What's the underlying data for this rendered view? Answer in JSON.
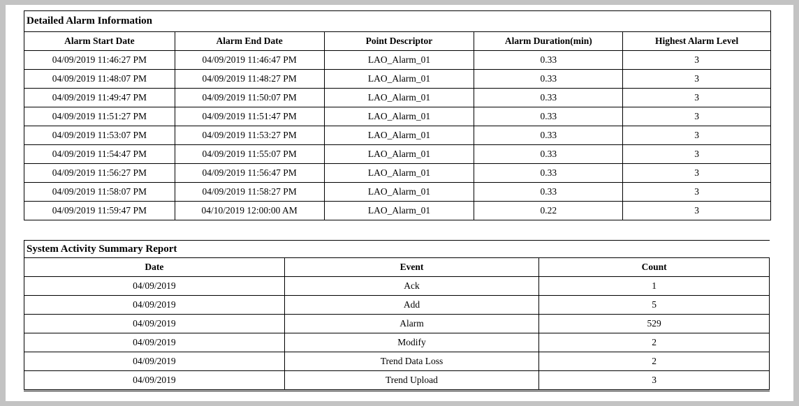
{
  "alarm_table": {
    "title": "Detailed Alarm Information",
    "headers": [
      "Alarm Start Date",
      "Alarm End Date",
      "Point Descriptor",
      "Alarm Duration(min)",
      "Highest Alarm Level"
    ],
    "rows": [
      [
        "04/09/2019 11:46:27 PM",
        "04/09/2019 11:46:47 PM",
        "LAO_Alarm_01",
        "0.33",
        "3"
      ],
      [
        "04/09/2019 11:48:07 PM",
        "04/09/2019 11:48:27 PM",
        "LAO_Alarm_01",
        "0.33",
        "3"
      ],
      [
        "04/09/2019 11:49:47 PM",
        "04/09/2019 11:50:07 PM",
        "LAO_Alarm_01",
        "0.33",
        "3"
      ],
      [
        "04/09/2019 11:51:27 PM",
        "04/09/2019 11:51:47 PM",
        "LAO_Alarm_01",
        "0.33",
        "3"
      ],
      [
        "04/09/2019 11:53:07 PM",
        "04/09/2019 11:53:27 PM",
        "LAO_Alarm_01",
        "0.33",
        "3"
      ],
      [
        "04/09/2019 11:54:47 PM",
        "04/09/2019 11:55:07 PM",
        "LAO_Alarm_01",
        "0.33",
        "3"
      ],
      [
        "04/09/2019 11:56:27 PM",
        "04/09/2019 11:56:47 PM",
        "LAO_Alarm_01",
        "0.33",
        "3"
      ],
      [
        "04/09/2019 11:58:07 PM",
        "04/09/2019 11:58:27 PM",
        "LAO_Alarm_01",
        "0.33",
        "3"
      ],
      [
        "04/09/2019 11:59:47 PM",
        "04/10/2019 12:00:00 AM",
        "LAO_Alarm_01",
        "0.22",
        "3"
      ]
    ]
  },
  "activity_table": {
    "title": "System Activity Summary Report",
    "headers": [
      "Date",
      "Event",
      "Count"
    ],
    "rows": [
      [
        "04/09/2019",
        "Ack",
        "1"
      ],
      [
        "04/09/2019",
        "Add",
        "5"
      ],
      [
        "04/09/2019",
        "Alarm",
        "529"
      ],
      [
        "04/09/2019",
        "Modify",
        "2"
      ],
      [
        "04/09/2019",
        "Trend Data Loss",
        "2"
      ],
      [
        "04/09/2019",
        "Trend Upload",
        "3"
      ]
    ]
  }
}
